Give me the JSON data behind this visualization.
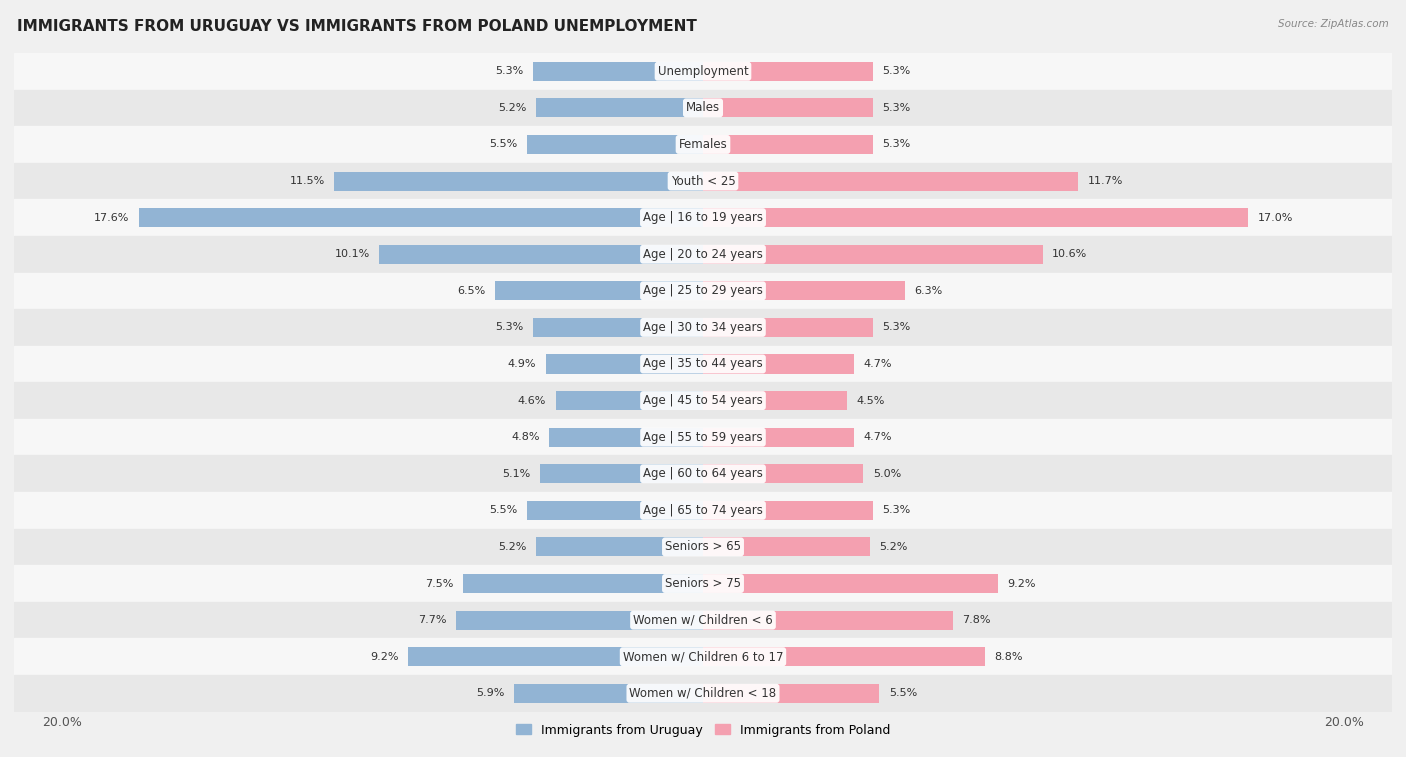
{
  "title": "IMMIGRANTS FROM URUGUAY VS IMMIGRANTS FROM POLAND UNEMPLOYMENT",
  "source": "Source: ZipAtlas.com",
  "categories": [
    "Unemployment",
    "Males",
    "Females",
    "Youth < 25",
    "Age | 16 to 19 years",
    "Age | 20 to 24 years",
    "Age | 25 to 29 years",
    "Age | 30 to 34 years",
    "Age | 35 to 44 years",
    "Age | 45 to 54 years",
    "Age | 55 to 59 years",
    "Age | 60 to 64 years",
    "Age | 65 to 74 years",
    "Seniors > 65",
    "Seniors > 75",
    "Women w/ Children < 6",
    "Women w/ Children 6 to 17",
    "Women w/ Children < 18"
  ],
  "uruguay_values": [
    5.3,
    5.2,
    5.5,
    11.5,
    17.6,
    10.1,
    6.5,
    5.3,
    4.9,
    4.6,
    4.8,
    5.1,
    5.5,
    5.2,
    7.5,
    7.7,
    9.2,
    5.9
  ],
  "poland_values": [
    5.3,
    5.3,
    5.3,
    11.7,
    17.0,
    10.6,
    6.3,
    5.3,
    4.7,
    4.5,
    4.7,
    5.0,
    5.3,
    5.2,
    9.2,
    7.8,
    8.8,
    5.5
  ],
  "uruguay_color": "#92b4d4",
  "poland_color": "#f4a0b0",
  "max_val": 20.0,
  "background_color": "#f0f0f0",
  "row_bg_colors": [
    "#f7f7f7",
    "#e8e8e8"
  ],
  "title_fontsize": 11,
  "label_fontsize": 8.5,
  "value_fontsize": 8,
  "legend_fontsize": 9,
  "axis_label_color": "#555555",
  "text_color": "#333333"
}
